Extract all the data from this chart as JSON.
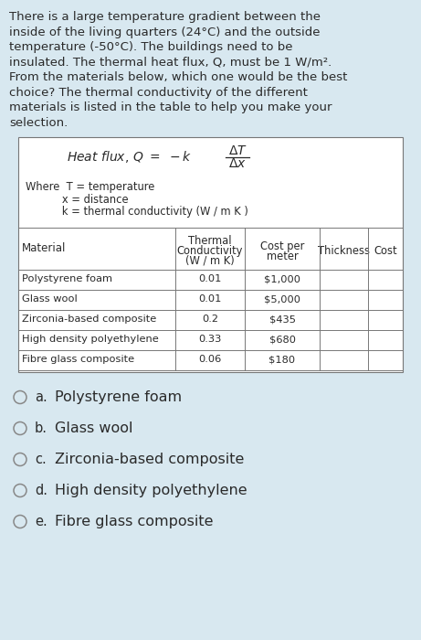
{
  "bg_color": "#d8e8f0",
  "intro_lines": [
    "There is a large temperature gradient between the",
    "inside of the living quarters (24°C) and the outside",
    "temperature (-50°C). The buildings need to be",
    "insulated. The thermal heat flux, Q, must be 1 W/m².",
    "From the materials below, which one would be the best",
    "choice? The thermal conductivity of the different",
    "materials is listed in the table to help you make your",
    "selection."
  ],
  "where_lines": [
    "Where  T = temperature",
    "           x = distance",
    "           k = thermal conductivity (W / m K )"
  ],
  "table_col_headers": [
    "Material",
    "Thermal\nConductivity\n(W / m K)",
    "Cost per\nmeter",
    "Thickness",
    "Cost"
  ],
  "table_rows": [
    [
      "Polystyrene foam",
      "0.01",
      "$1,000",
      "",
      ""
    ],
    [
      "Glass wool",
      "0.01",
      "$5,000",
      "",
      ""
    ],
    [
      "Zirconia-based composite",
      "0.2",
      "$435",
      "",
      ""
    ],
    [
      "High density polyethylene",
      "0.33",
      "$680",
      "",
      ""
    ],
    [
      "Fibre glass composite",
      "0.06",
      "$180",
      "",
      ""
    ]
  ],
  "options": [
    [
      "a.",
      "Polystyrene foam"
    ],
    [
      "b.",
      "Glass wool"
    ],
    [
      "c.",
      "Zirconia-based composite"
    ],
    [
      "d.",
      "High density polyethylene"
    ],
    [
      "e.",
      "Fibre glass composite"
    ]
  ],
  "text_color": "#2a2a2a",
  "table_border_color": "#777777",
  "white": "#ffffff"
}
